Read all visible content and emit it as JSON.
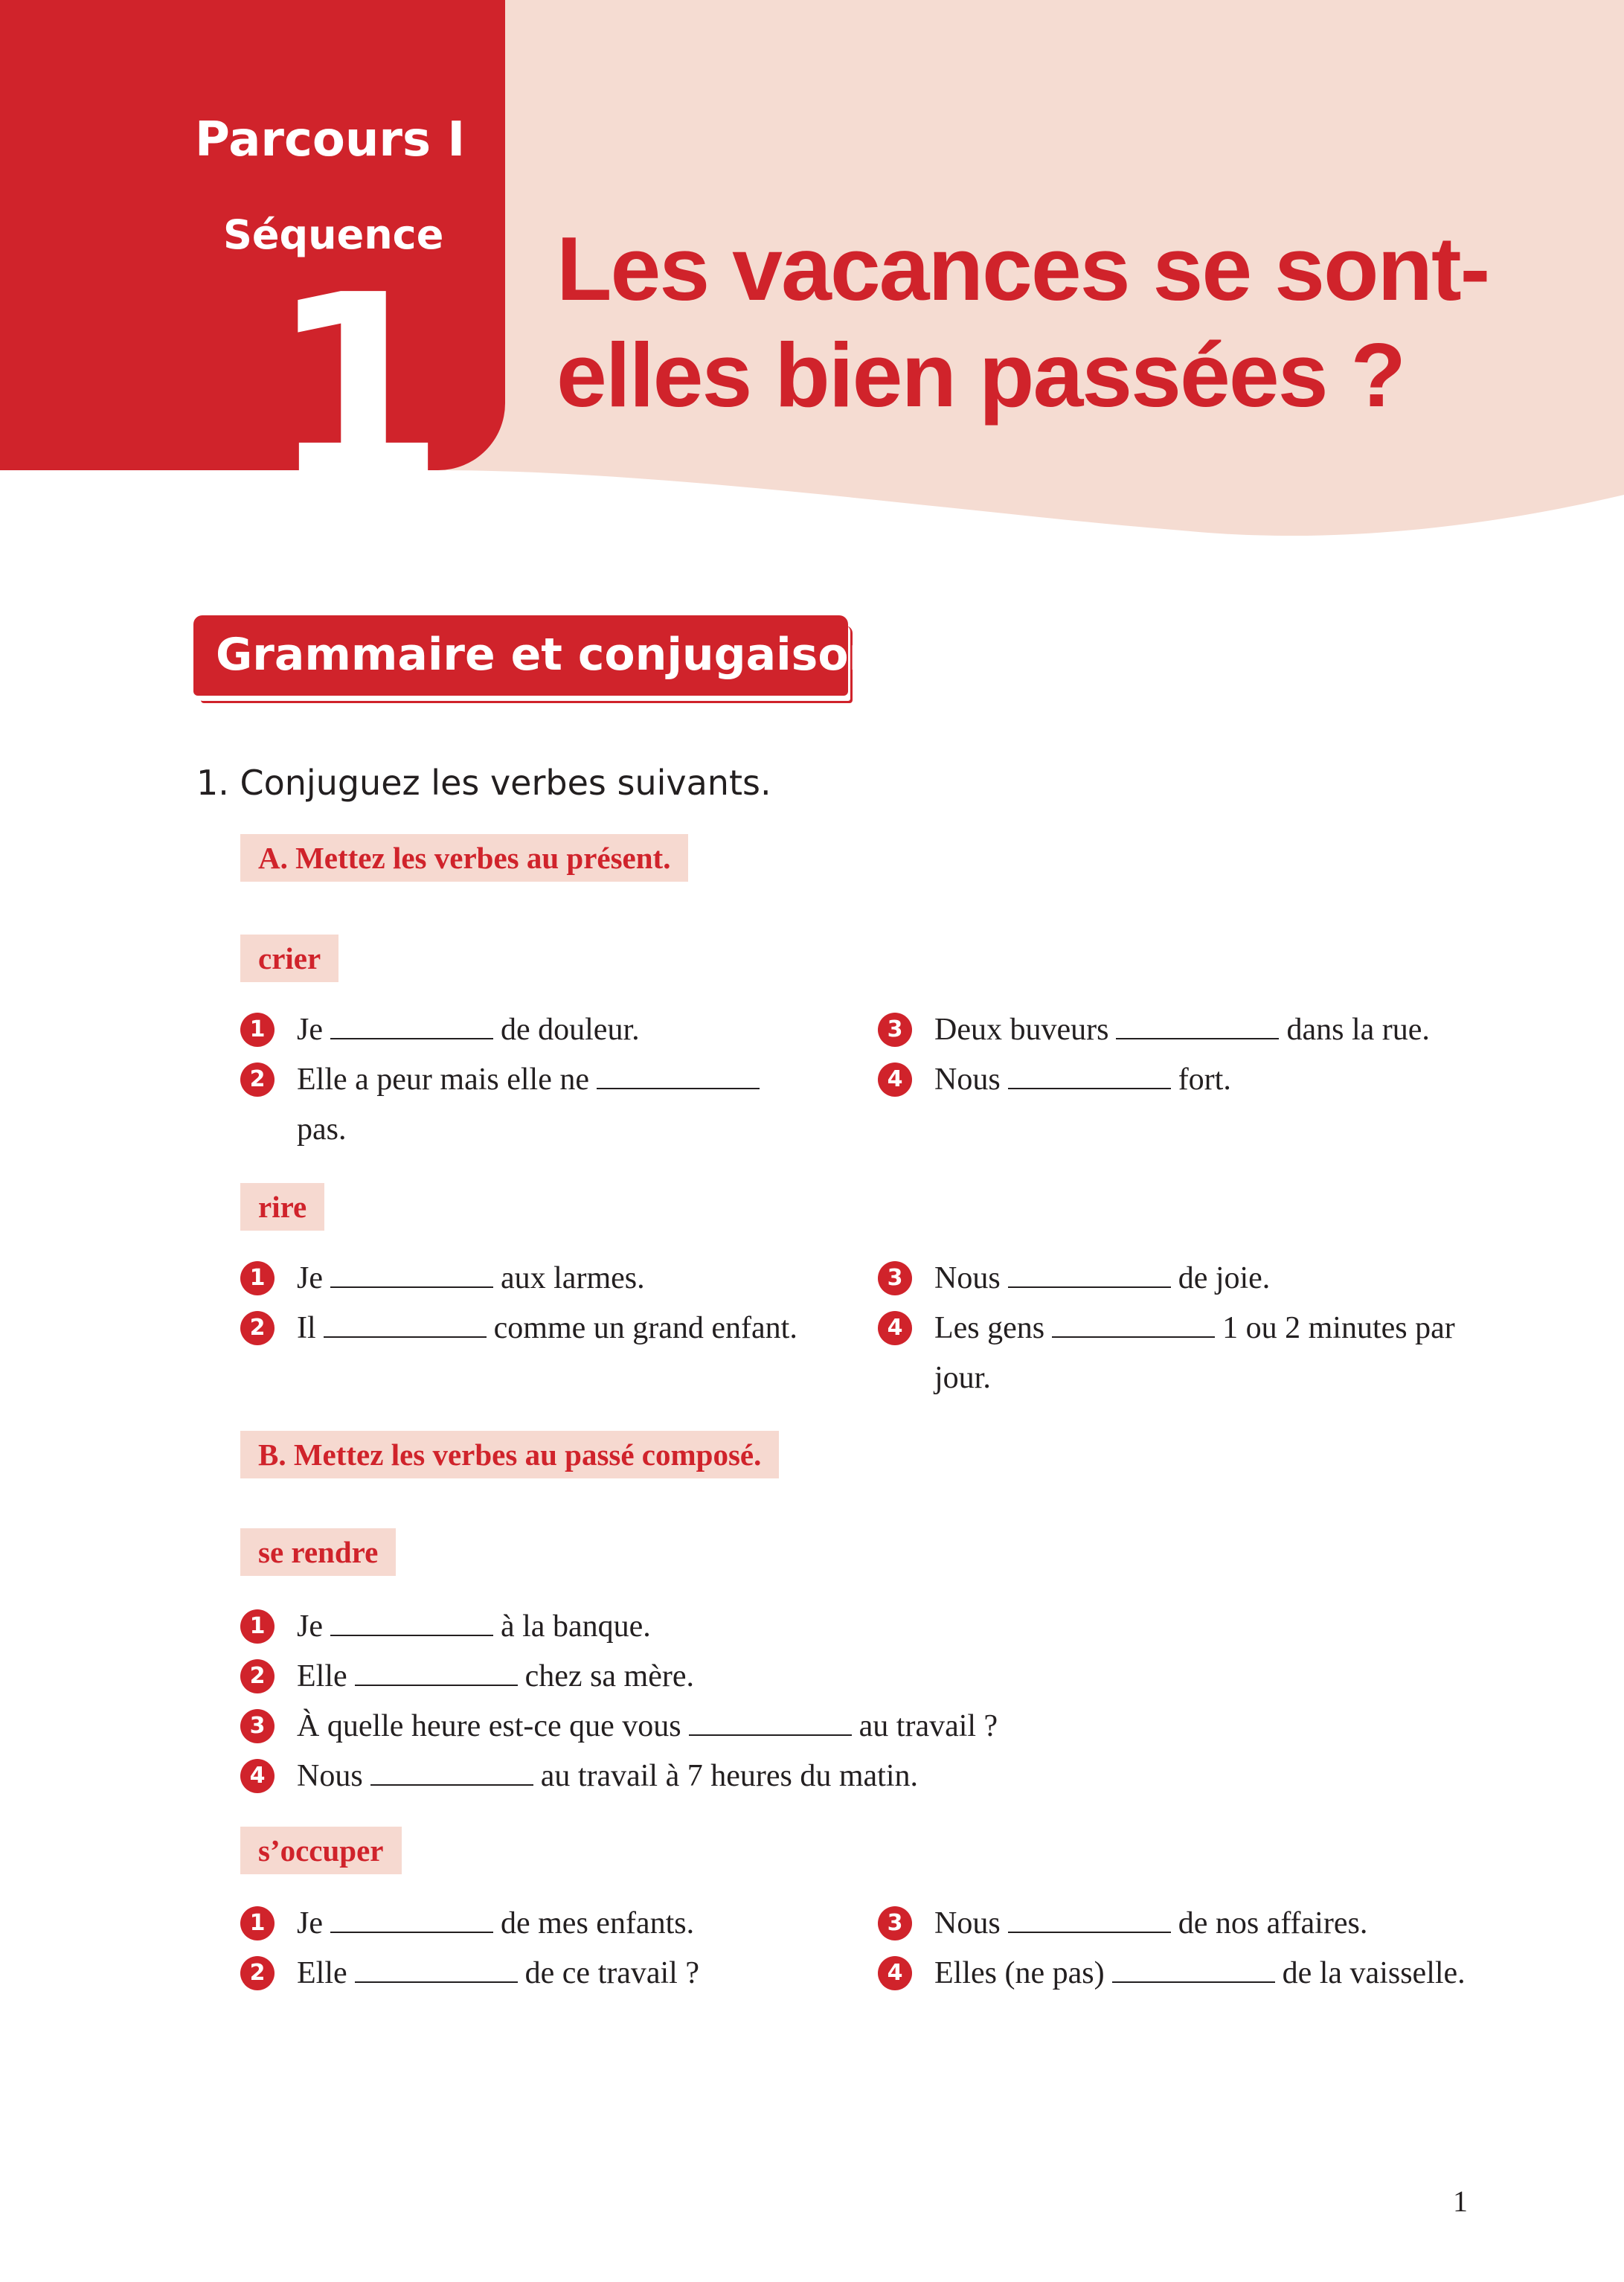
{
  "colors": {
    "accent": "#d0232b",
    "header_bg": "#f5dcd2",
    "label_bg": "#f6d9d0"
  },
  "header": {
    "parcours": "Parcours I",
    "sequence_label": "Séquence",
    "sequence_number": "1",
    "title_line1": "Les vacances se sont-",
    "title_line2": "elles bien passées ?"
  },
  "section_title": "Grammaire et conjugaison",
  "exercise": {
    "title": "1. Conjuguez les verbes suivants.",
    "part_a": "A. Mettez les verbes au présent.",
    "part_b": "B. Mettez les verbes au passé composé.",
    "groups": [
      {
        "verb": "crier",
        "items": [
          {
            "n": "1",
            "before": "Je",
            "after": "de douleur."
          },
          {
            "n": "2",
            "before": "Elle a peur mais elle ne",
            "after": "pas."
          },
          {
            "n": "3",
            "before": "Deux buveurs",
            "after": "dans la rue."
          },
          {
            "n": "4",
            "before": "Nous",
            "after": "fort."
          }
        ]
      },
      {
        "verb": "rire",
        "items": [
          {
            "n": "1",
            "before": "Je",
            "after": "aux larmes."
          },
          {
            "n": "2",
            "before": "Il",
            "after": "comme un grand enfant."
          },
          {
            "n": "3",
            "before": "Nous",
            "after": "de joie."
          },
          {
            "n": "4",
            "before": "Les gens",
            "after": "1 ou 2 minutes par jour."
          }
        ]
      },
      {
        "verb": "se rendre",
        "items": [
          {
            "n": "1",
            "before": "Je",
            "after": "à la banque."
          },
          {
            "n": "2",
            "before": "Elle",
            "after": "chez sa mère."
          },
          {
            "n": "3",
            "before": "À quelle heure est-ce que vous",
            "after": "au travail ?"
          },
          {
            "n": "4",
            "before": "Nous",
            "after": "au travail à 7 heures du matin."
          }
        ]
      },
      {
        "verb": "s’occuper",
        "items": [
          {
            "n": "1",
            "before": "Je",
            "after": "de mes enfants."
          },
          {
            "n": "2",
            "before": "Elle",
            "after": "de ce travail ?"
          },
          {
            "n": "3",
            "before": "Nous",
            "after": "de nos affaires."
          },
          {
            "n": "4",
            "before": "Elles (ne pas)",
            "after": "de la vaisselle."
          }
        ]
      }
    ]
  },
  "page_number": "1"
}
